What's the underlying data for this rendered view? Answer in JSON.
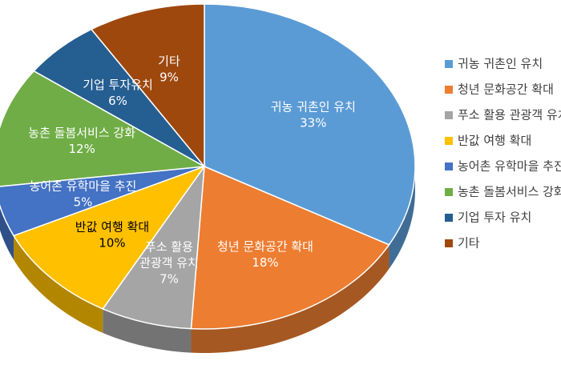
{
  "chart_data": {
    "type": "pie3d",
    "categories": [
      "귀농 귀촌인 유치",
      "청년 문화공간 확대",
      "푸소 활용 관광객 유치",
      "반값 여행 확대",
      "농어촌 유학마을 추진",
      "농촌 돌봄서비스 강화",
      "기업 투자 유치",
      "기타"
    ],
    "slice_labels": [
      [
        "귀농 귀촌인 유치"
      ],
      [
        "청년 문화공간 확대"
      ],
      [
        "푸소 활용",
        "관광객 유치"
      ],
      [
        "반값 여행 확대"
      ],
      [
        "농어촌 유학마을 추진"
      ],
      [
        "농촌 돌봄서비스 강화"
      ],
      [
        "기업 투자유치"
      ],
      [
        "기타"
      ]
    ],
    "values": [
      33,
      18,
      7,
      10,
      5,
      12,
      6,
      9
    ],
    "value_labels": [
      "33%",
      "18%",
      "7%",
      "10%",
      "5%",
      "12%",
      "6%",
      "9%"
    ],
    "colors": [
      "#5b9bd5",
      "#ed7d31",
      "#a5a5a5",
      "#ffc000",
      "#4472c4",
      "#70ad47",
      "#255e91",
      "#9e480e"
    ],
    "label_colors": [
      "#ffffff",
      "#ffffff",
      "#ffffff",
      "#000000",
      "#ffffff",
      "#ffffff",
      "#ffffff",
      "#ffffff"
    ],
    "legend": "right"
  }
}
